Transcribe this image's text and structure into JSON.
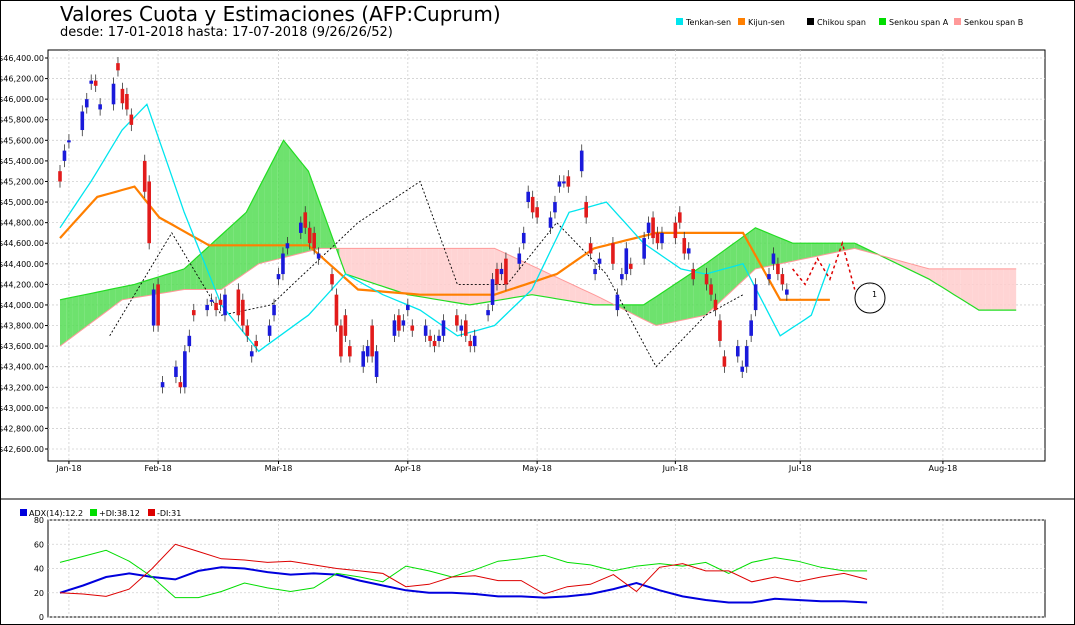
{
  "header": {
    "title": "Valores Cuota y Estimaciones (AFP:Cuprum)",
    "subtitle": "desde: 17-01-2018 hasta: 17-07-2018 (9/26/26/52)"
  },
  "legend": [
    {
      "label": "Tenkan-sen",
      "color": "#00e5ee"
    },
    {
      "label": "Kijun-sen",
      "color": "#ff7f00"
    },
    {
      "label": "Chikou span",
      "color": "#000000"
    },
    {
      "label": "Senkou span A",
      "color": "#00dd00"
    },
    {
      "label": "Senkou span B",
      "color": "#ff9999"
    }
  ],
  "annotation": {
    "label": "1"
  },
  "indicator_legend": [
    {
      "label": "ADX(14):12.2",
      "color": "#0000dd"
    },
    {
      "label": "+DI:38.12",
      "color": "#00dd00"
    },
    {
      "label": "-DI:31",
      "color": "#dd0000"
    }
  ],
  "chart_data": [
    {
      "type": "candlestick-ichimoku",
      "title": "Valores Cuota y Estimaciones (AFP:Cuprum)",
      "y_ticks": [
        "$42,600.00",
        "$42,800.00",
        "$43,000.00",
        "$43,200.00",
        "$43,400.00",
        "$43,600.00",
        "$43,800.00",
        "$44,000.00",
        "$44,200.00",
        "$44,400.00",
        "$44,600.00",
        "$44,800.00",
        "$45,000.00",
        "$45,200.00",
        "$45,400.00",
        "$45,600.00",
        "$45,800.00",
        "$46,000.00",
        "$46,200.00",
        "$46,400.00"
      ],
      "ylim": [
        42600,
        46400
      ],
      "x_ticks": [
        "Jan-18",
        "Feb-18",
        "Mar-18",
        "Apr-18",
        "May-18",
        "Jun-18",
        "Jul-18",
        "Aug-18"
      ],
      "xlim": [
        "2018-01-17",
        "2018-08-25"
      ],
      "grid": true,
      "legend_position": "top-right",
      "candles": [
        [
          "2018-01-17",
          45300,
          45200
        ],
        [
          "2018-01-18",
          45400,
          45500
        ],
        [
          "2018-01-19",
          45580,
          45600
        ],
        [
          "2018-01-22",
          45700,
          45880
        ],
        [
          "2018-01-23",
          45920,
          46000
        ],
        [
          "2018-01-24",
          46150,
          46180
        ],
        [
          "2018-01-25",
          46180,
          46130
        ],
        [
          "2018-01-26",
          45900,
          45950
        ],
        [
          "2018-01-29",
          45950,
          46150
        ],
        [
          "2018-01-30",
          46350,
          46280
        ],
        [
          "2018-01-31",
          46100,
          45960
        ],
        [
          "2018-02-01",
          46050,
          45900
        ],
        [
          "2018-02-02",
          45850,
          45750
        ],
        [
          "2018-02-05",
          45400,
          45100
        ],
        [
          "2018-02-06",
          45200,
          44600
        ],
        [
          "2018-02-07",
          43800,
          44150
        ],
        [
          "2018-02-08",
          44200,
          43800
        ],
        [
          "2018-02-09",
          43200,
          43250
        ],
        [
          "2018-02-12",
          43300,
          43400
        ],
        [
          "2018-02-13",
          43250,
          43200
        ],
        [
          "2018-02-14",
          43200,
          43550
        ],
        [
          "2018-02-15",
          43600,
          43700
        ],
        [
          "2018-02-16",
          43950,
          43900
        ],
        [
          "2018-02-19",
          43950,
          44000
        ],
        [
          "2018-02-20",
          44050,
          44050
        ],
        [
          "2018-02-21",
          44020,
          43950
        ],
        [
          "2018-02-22",
          44050,
          44000
        ],
        [
          "2018-02-23",
          43900,
          44100
        ],
        [
          "2018-02-26",
          44150,
          43900
        ],
        [
          "2018-02-27",
          44050,
          43800
        ],
        [
          "2018-02-28",
          43800,
          43700
        ],
        [
          "2018-03-01",
          43500,
          43550
        ],
        [
          "2018-03-02",
          43650,
          43600
        ],
        [
          "2018-03-05",
          43700,
          43800
        ],
        [
          "2018-03-06",
          43900,
          44000
        ],
        [
          "2018-03-07",
          44250,
          44300
        ],
        [
          "2018-03-08",
          44300,
          44500
        ],
        [
          "2018-03-09",
          44550,
          44600
        ],
        [
          "2018-03-12",
          44700,
          44800
        ],
        [
          "2018-03-13",
          44900,
          44750
        ],
        [
          "2018-03-14",
          44750,
          44600
        ],
        [
          "2018-03-15",
          44700,
          44550
        ],
        [
          "2018-03-16",
          44450,
          44500
        ],
        [
          "2018-03-19",
          44300,
          44200
        ],
        [
          "2018-03-20",
          44100,
          43800
        ],
        [
          "2018-03-21",
          43800,
          43500
        ],
        [
          "2018-03-22",
          43900,
          43700
        ],
        [
          "2018-03-23",
          43600,
          43500
        ],
        [
          "2018-03-26",
          43400,
          43550
        ],
        [
          "2018-03-27",
          43500,
          43600
        ],
        [
          "2018-03-28",
          43800,
          43500
        ],
        [
          "2018-03-29",
          43300,
          43550
        ],
        [
          "2018-04-02",
          43700,
          43850
        ],
        [
          "2018-04-03",
          43900,
          43750
        ],
        [
          "2018-04-04",
          43800,
          43850
        ],
        [
          "2018-04-05",
          43950,
          44000
        ],
        [
          "2018-04-06",
          43800,
          43750
        ],
        [
          "2018-04-09",
          43700,
          43800
        ],
        [
          "2018-04-10",
          43700,
          43650
        ],
        [
          "2018-04-11",
          43650,
          43600
        ],
        [
          "2018-04-12",
          43650,
          43700
        ],
        [
          "2018-04-13",
          43700,
          43850
        ],
        [
          "2018-04-16",
          43900,
          43800
        ],
        [
          "2018-04-17",
          43750,
          43800
        ],
        [
          "2018-04-18",
          43850,
          43700
        ],
        [
          "2018-04-19",
          43650,
          43600
        ],
        [
          "2018-04-20",
          43600,
          43700
        ],
        [
          "2018-04-23",
          43900,
          43950
        ],
        [
          "2018-04-24",
          44000,
          44250
        ],
        [
          "2018-04-25",
          44350,
          44200
        ],
        [
          "2018-04-26",
          44300,
          44350
        ],
        [
          "2018-04-27",
          44450,
          44200
        ],
        [
          "2018-04-30",
          44400,
          44500
        ],
        [
          "2018-05-01",
          44600,
          44700
        ],
        [
          "2018-05-02",
          45000,
          45100
        ],
        [
          "2018-05-03",
          45050,
          44900
        ],
        [
          "2018-05-04",
          44950,
          44850
        ],
        [
          "2018-05-07",
          44750,
          44850
        ],
        [
          "2018-05-08",
          44900,
          45000
        ],
        [
          "2018-05-09",
          45150,
          45200
        ],
        [
          "2018-05-10",
          45200,
          45200
        ],
        [
          "2018-05-11",
          45250,
          45150
        ],
        [
          "2018-05-14",
          45300,
          45500
        ],
        [
          "2018-05-15",
          45000,
          44850
        ],
        [
          "2018-05-16",
          44600,
          44500
        ],
        [
          "2018-05-17",
          44300,
          44350
        ],
        [
          "2018-05-18",
          44400,
          44450
        ],
        [
          "2018-05-21",
          44600,
          44400
        ],
        [
          "2018-05-22",
          43950,
          44100
        ],
        [
          "2018-05-23",
          44250,
          44300
        ],
        [
          "2018-05-24",
          44300,
          44550
        ],
        [
          "2018-05-25",
          44400,
          44350
        ],
        [
          "2018-05-28",
          44450,
          44650
        ],
        [
          "2018-05-29",
          44700,
          44800
        ],
        [
          "2018-05-30",
          44850,
          44650
        ],
        [
          "2018-05-31",
          44700,
          44600
        ],
        [
          "2018-06-01",
          44600,
          44700
        ],
        [
          "2018-06-04",
          44800,
          44650
        ],
        [
          "2018-06-05",
          44900,
          44800
        ],
        [
          "2018-06-06",
          44650,
          44500
        ],
        [
          "2018-06-07",
          44500,
          44550
        ],
        [
          "2018-06-08",
          44350,
          44250
        ],
        [
          "2018-06-11",
          44300,
          44200
        ],
        [
          "2018-06-12",
          44200,
          44100
        ],
        [
          "2018-06-13",
          44050,
          43950
        ],
        [
          "2018-06-14",
          43850,
          43650
        ],
        [
          "2018-06-15",
          43500,
          43400
        ],
        [
          "2018-06-18",
          43500,
          43600
        ],
        [
          "2018-06-19",
          43350,
          43400
        ],
        [
          "2018-06-20",
          43400,
          43600
        ],
        [
          "2018-06-21",
          43700,
          43850
        ],
        [
          "2018-06-22",
          43950,
          44200
        ],
        [
          "2018-06-25",
          44250,
          44300
        ],
        [
          "2018-06-26",
          44400,
          44500
        ],
        [
          "2018-06-27",
          44400,
          44300
        ],
        [
          "2018-06-28",
          44300,
          44200
        ],
        [
          "2018-06-29",
          44100,
          44150
        ]
      ],
      "tenkan_sen": [
        [
          0,
          44750
        ],
        [
          5,
          45200
        ],
        [
          10,
          45700
        ],
        [
          14,
          45950
        ],
        [
          20,
          44900
        ],
        [
          26,
          44000
        ],
        [
          32,
          43550
        ],
        [
          40,
          43900
        ],
        [
          46,
          44300
        ],
        [
          52,
          44100
        ],
        [
          58,
          43950
        ],
        [
          64,
          43700
        ],
        [
          70,
          43800
        ],
        [
          76,
          44150
        ],
        [
          82,
          44900
        ],
        [
          88,
          45000
        ],
        [
          94,
          44600
        ],
        [
          100,
          44350
        ],
        [
          104,
          44300
        ],
        [
          110,
          44400
        ],
        [
          116,
          43700
        ],
        [
          121,
          43900
        ],
        [
          124,
          44400
        ]
      ],
      "kijun_sen": [
        [
          0,
          44650
        ],
        [
          6,
          45050
        ],
        [
          12,
          45150
        ],
        [
          16,
          44850
        ],
        [
          24,
          44580
        ],
        [
          40,
          44580
        ],
        [
          48,
          44150
        ],
        [
          58,
          44100
        ],
        [
          70,
          44100
        ],
        [
          80,
          44300
        ],
        [
          86,
          44550
        ],
        [
          96,
          44700
        ],
        [
          110,
          44700
        ],
        [
          116,
          44050
        ],
        [
          124,
          44050
        ]
      ],
      "chikou_span": [
        [
          8,
          43700
        ],
        [
          18,
          44700
        ],
        [
          26,
          43900
        ],
        [
          34,
          44000
        ],
        [
          48,
          44800
        ],
        [
          58,
          45200
        ],
        [
          64,
          44200
        ],
        [
          72,
          44200
        ],
        [
          80,
          44800
        ],
        [
          88,
          44300
        ],
        [
          96,
          43400
        ],
        [
          104,
          43900
        ],
        [
          110,
          44100
        ]
      ],
      "senkou_span_a": [
        [
          0,
          44050
        ],
        [
          12,
          44200
        ],
        [
          20,
          44350
        ],
        [
          30,
          44900
        ],
        [
          36,
          45600
        ],
        [
          40,
          45300
        ],
        [
          46,
          44300
        ],
        [
          56,
          44100
        ],
        [
          66,
          44000
        ],
        [
          76,
          44100
        ],
        [
          86,
          44000
        ],
        [
          94,
          44000
        ],
        [
          104,
          44400
        ],
        [
          112,
          44750
        ],
        [
          118,
          44600
        ],
        [
          128,
          44600
        ],
        [
          140,
          44250
        ],
        [
          148,
          43950
        ],
        [
          154,
          43950
        ]
      ],
      "senkou_span_b": [
        [
          0,
          43600
        ],
        [
          10,
          44050
        ],
        [
          20,
          44150
        ],
        [
          26,
          44150
        ],
        [
          32,
          44400
        ],
        [
          42,
          44550
        ],
        [
          60,
          44550
        ],
        [
          70,
          44550
        ],
        [
          86,
          44100
        ],
        [
          96,
          43800
        ],
        [
          104,
          43900
        ],
        [
          112,
          44350
        ],
        [
          128,
          44550
        ],
        [
          140,
          44350
        ],
        [
          154,
          44350
        ]
      ]
    },
    {
      "type": "line",
      "ylim": [
        0,
        80
      ],
      "y_ticks": [
        "0",
        "20",
        "40",
        "60",
        "80"
      ],
      "series": [
        {
          "name": "ADX(14):12.2",
          "values": [
            20,
            26,
            33,
            36,
            33,
            31,
            38,
            41,
            40,
            37,
            35,
            36,
            35,
            30,
            26,
            22,
            20,
            20,
            19,
            17,
            17,
            16,
            17,
            19,
            23,
            28,
            22,
            17,
            14,
            12,
            12,
            15,
            14,
            13,
            13,
            12
          ]
        },
        {
          "name": "+DI:38.12",
          "values": [
            45,
            50,
            55,
            46,
            33,
            16,
            16,
            21,
            28,
            24,
            21,
            24,
            36,
            33,
            29,
            42,
            38,
            33,
            39,
            46,
            48,
            51,
            45,
            43,
            38,
            42,
            44,
            42,
            45,
            36,
            45,
            49,
            46,
            41,
            38,
            38
          ]
        },
        {
          "name": "-DI:31",
          "values": [
            20,
            19,
            17,
            23,
            40,
            60,
            54,
            48,
            47,
            45,
            46,
            43,
            40,
            38,
            36,
            25,
            27,
            33,
            34,
            30,
            30,
            19,
            25,
            27,
            35,
            21,
            41,
            44,
            38,
            38,
            29,
            33,
            29,
            33,
            36,
            31
          ]
        }
      ]
    }
  ]
}
